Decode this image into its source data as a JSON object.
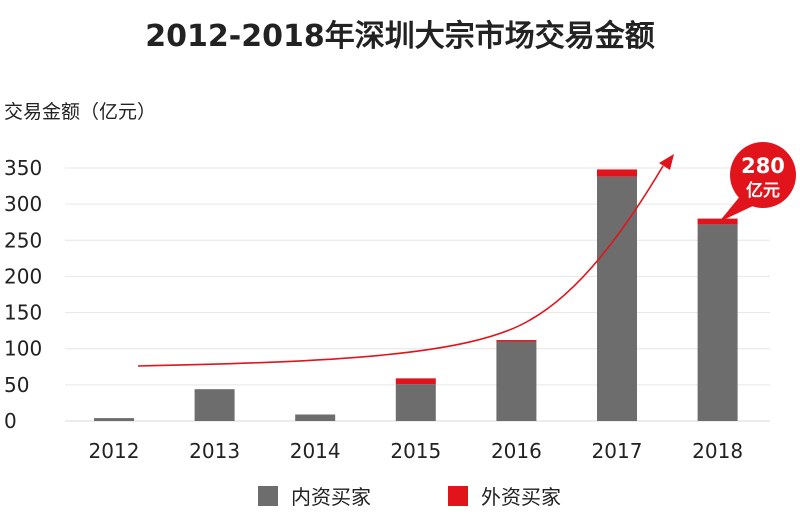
{
  "chart_data": {
    "type": "bar",
    "stacked": true,
    "title": "2012-2018年深圳大宗市场交易金额",
    "ylabel": "交易金额（亿元）",
    "xlabel": "",
    "categories": [
      "2012",
      "2013",
      "2014",
      "2015",
      "2016",
      "2017",
      "2018"
    ],
    "series": [
      {
        "name": "内资买家",
        "color": "#6d6d6d",
        "values": [
          4,
          44,
          9,
          51,
          110,
          338,
          272
        ]
      },
      {
        "name": "外资买家",
        "color": "#e1141c",
        "values": [
          0,
          0,
          0,
          8,
          2,
          10,
          8
        ]
      }
    ],
    "ylim": [
      0,
      350
    ],
    "yticks": [
      0,
      50,
      100,
      150,
      200,
      250,
      300,
      350
    ],
    "grid": true,
    "legend": "bottom",
    "callout": {
      "line1": "280",
      "line2": "亿元",
      "category": "2018",
      "color": "#e1141c"
    },
    "trend_arrow": {
      "color": "#e1141c"
    }
  }
}
